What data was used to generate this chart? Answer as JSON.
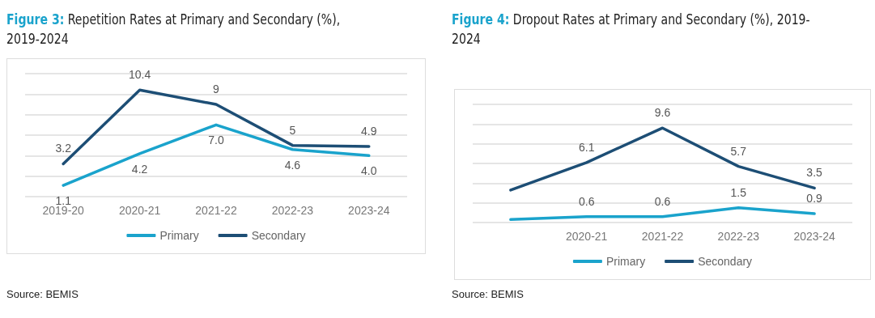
{
  "chart_data": [
    {
      "type": "line",
      "title": "Figure 3:  Repetition Rates at Primary and Secondary (%), 2019-2024",
      "categories": [
        "2019-20",
        "2020-21",
        "2021-22",
        "2022-23",
        "2023-24"
      ],
      "series": [
        {
          "name": "Primary",
          "color": "#1aa3cc",
          "values": [
            1.1,
            4.2,
            7.0,
            4.6,
            4.0
          ],
          "value_labels": [
            "1.1",
            "4.2",
            "7.0",
            "4.6",
            "4.0"
          ]
        },
        {
          "name": "Secondary",
          "color": "#1d4e75",
          "values": [
            3.2,
            10.4,
            9,
            5,
            4.9
          ],
          "value_labels": [
            "3.2",
            "10.4",
            "9",
            "5",
            "4.9"
          ]
        }
      ],
      "ylim": [
        0,
        12
      ],
      "yticks": [
        {
          "value": 0,
          "label": null
        },
        {
          "value": 2,
          "label": null
        },
        {
          "value": 4,
          "label": null
        },
        {
          "value": 6,
          "label": null
        },
        {
          "value": 8,
          "label": null
        },
        {
          "value": 10,
          "label": null
        },
        {
          "value": 12,
          "label": null
        }
      ],
      "tick_labels": "x",
      "grid": "y",
      "legend": "bottom",
      "marker": "none",
      "annotations": [
        "Source: BEMIS"
      ]
    },
    {
      "type": "line",
      "title": "Figure 4:  Dropout Rates at Primary and Secondary (%), 2019-2024",
      "categories": [
        null,
        "2020-21",
        "2021-22",
        "2022-23",
        "2023-24"
      ],
      "series": [
        {
          "name": "Primary",
          "color": "#1aa3cc",
          "values": [
            0.3,
            0.6,
            0.6,
            1.5,
            0.9
          ],
          "value_labels": [
            null,
            "0.6",
            "0.6",
            "1.5",
            "0.9"
          ]
        },
        {
          "name": "Secondary",
          "color": "#1d4e75",
          "values": [
            3.3,
            6.1,
            9.6,
            5.7,
            3.5
          ],
          "value_labels": [
            null,
            "6.1",
            "9.6",
            "5.7",
            "3.5"
          ]
        }
      ],
      "ylim": [
        0,
        12
      ],
      "yticks": [
        {
          "value": 0,
          "label": null
        },
        {
          "value": 2,
          "label": null
        },
        {
          "value": 4,
          "label": null
        },
        {
          "value": 6,
          "label": null
        },
        {
          "value": 8,
          "label": null
        },
        {
          "value": 10,
          "label": null
        },
        {
          "value": 12,
          "label": null
        }
      ],
      "tick_labels": "x",
      "grid": "y",
      "legend": "bottom",
      "marker": "none",
      "annotations": [
        "Source: BEMIS"
      ]
    }
  ]
}
